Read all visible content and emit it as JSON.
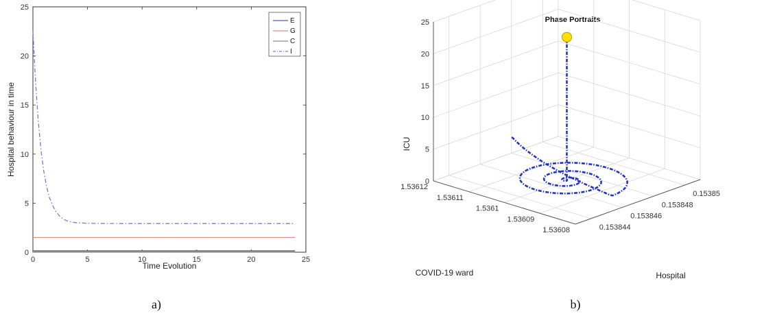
{
  "chart_data": [
    {
      "type": "line",
      "panel_caption": "a)",
      "title": "",
      "xlabel": "Time Evolution",
      "ylabel": "Hospital behaviour in time",
      "xlim": [
        0,
        25
      ],
      "ylim": [
        0,
        25
      ],
      "xticks": [
        0,
        5,
        10,
        15,
        20,
        25
      ],
      "yticks": [
        0,
        5,
        10,
        15,
        20,
        25
      ],
      "grid": false,
      "legend": "top-right",
      "series": [
        {
          "name": "E",
          "color": "#5a5aa8",
          "style": "solid",
          "x": [
            0,
            24
          ],
          "y": [
            0.15,
            0.15
          ]
        },
        {
          "name": "G",
          "color": "#d98c80",
          "style": "solid",
          "x": [
            0,
            24
          ],
          "y": [
            1.5,
            1.5
          ]
        },
        {
          "name": "C",
          "color": "#8a8a8a",
          "style": "solid",
          "x": [
            0,
            24
          ],
          "y": [
            0.05,
            0.05
          ]
        },
        {
          "name": "I",
          "color": "#7777dd",
          "style": "dashdot",
          "x": [
            0,
            0.25,
            0.5,
            0.75,
            1,
            1.25,
            1.5,
            2,
            2.5,
            3,
            3.5,
            4,
            5,
            6,
            8,
            10,
            15,
            20,
            24
          ],
          "y": [
            22.5,
            17.2,
            13.2,
            10.3,
            8.2,
            6.7,
            5.6,
            4.3,
            3.6,
            3.25,
            3.08,
            3.0,
            2.95,
            2.93,
            2.92,
            2.92,
            2.92,
            2.92,
            2.92
          ]
        }
      ]
    },
    {
      "type": "scatter3d",
      "panel_caption": "b)",
      "title": "Phase Portraits",
      "xlabel": "Hospital",
      "ylabel": "COVID-19 ward",
      "zlabel": "ICU",
      "xticks": [
        "0.153844",
        "0.153846",
        "0.153848",
        "0.15385"
      ],
      "xrange": [
        0.153843,
        0.153851
      ],
      "yticks": [
        "1.53608",
        "1.53609",
        "1.5361",
        "1.53611",
        "1.53612"
      ],
      "yrange": [
        1.53608,
        1.53612
      ],
      "zticks": [
        0,
        5,
        10,
        15,
        20,
        25
      ],
      "zrange": [
        0,
        25
      ],
      "grid": true,
      "trajectory_color": "#2233cc",
      "start_marker_color": "#ffe000",
      "start_point": {
        "hospital": 0.153847,
        "covid_ward": 1.5361,
        "icu": 22.5
      },
      "trajectory_note": "spiral converging to equilibrium near ICU = 0",
      "spiral": {
        "center_hospital": 0.153847,
        "center_ward": 1.5361,
        "start_radius": 0.9,
        "turns": 3.3,
        "icu_level": 0
      }
    }
  ]
}
